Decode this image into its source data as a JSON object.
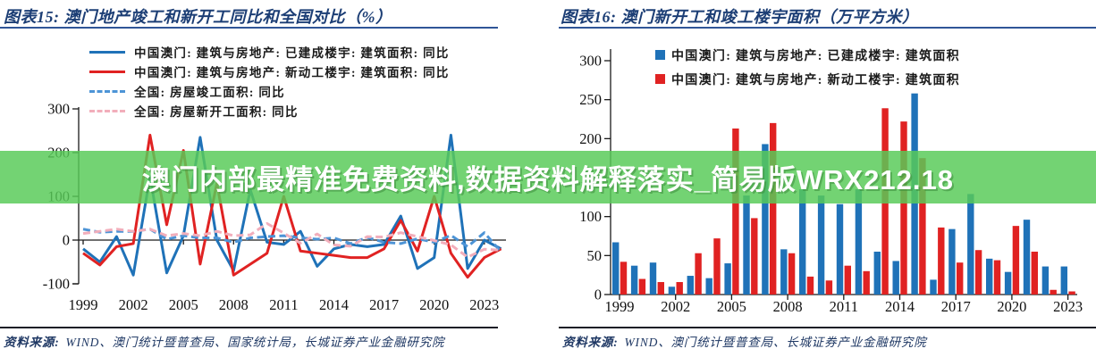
{
  "banner": {
    "text": "澳门内部最精准免费资料,数据资料解释落实_简易版WRX212.18",
    "bg_color": "#58CB58",
    "text_color": "#FFFFFF"
  },
  "left_panel": {
    "source_label": "资料来源:",
    "source": "WIND、澳门统计暨普查局、国家统计局，长城证券产业金融研究院"
  },
  "right_panel": {
    "source_label": "资料来源:",
    "source": "WIND、澳门统计暨普查局、长城证券产业金融研究院"
  },
  "chart_data": [
    {
      "type": "line",
      "title": "图表15:  澳门地产竣工和新开工同比和全国对比（%）",
      "xlabel": "",
      "ylabel": "",
      "ylim": [
        -100,
        300
      ],
      "yticks": [
        -100,
        0,
        100,
        200,
        300
      ],
      "xticks": [
        1999,
        2002,
        2005,
        2008,
        2011,
        2014,
        2017,
        2020,
        2023
      ],
      "grid": false,
      "legend_position": "top-left",
      "x": [
        1999,
        2000,
        2001,
        2002,
        2003,
        2004,
        2005,
        2006,
        2007,
        2008,
        2009,
        2010,
        2011,
        2012,
        2013,
        2014,
        2015,
        2016,
        2017,
        2018,
        2019,
        2020,
        2021,
        2022,
        2023,
        2024
      ],
      "series": [
        {
          "name": "中国澳门: 建筑与房地产: 已建成楼宇: 建筑面积: 同比",
          "color": "#1F72B8",
          "style": "solid",
          "values": [
            -20,
            -50,
            8,
            -80,
            145,
            -75,
            10,
            235,
            0,
            -70,
            115,
            -5,
            -10,
            20,
            -60,
            -20,
            -10,
            -15,
            -10,
            55,
            -65,
            -40,
            240,
            -65,
            0,
            -20
          ]
        },
        {
          "name": "中国澳门: 建筑与房地产: 新动工楼宇: 建筑面积: 同比",
          "color": "#E02222",
          "style": "solid",
          "values": [
            -30,
            -57,
            -15,
            -8,
            240,
            35,
            205,
            -55,
            130,
            -80,
            -55,
            -30,
            100,
            -25,
            -30,
            -35,
            -40,
            -40,
            -20,
            45,
            -25,
            100,
            -30,
            -85,
            -40,
            -20
          ]
        },
        {
          "name": "全国: 房屋竣工面积: 同比",
          "color": "#4D94D6",
          "style": "dashed",
          "values": [
            25,
            18,
            20,
            20,
            25,
            2,
            10,
            5,
            5,
            -5,
            5,
            8,
            10,
            5,
            2,
            5,
            -8,
            6,
            -5,
            -8,
            3,
            -5,
            11,
            -15,
            17,
            -27
          ]
        },
        {
          "name": "全国: 房屋新开工面积: 同比",
          "color": "#F2AEBB",
          "style": "dashed",
          "values": [
            15,
            20,
            25,
            20,
            25,
            10,
            15,
            10,
            20,
            10,
            12,
            38,
            16,
            -7,
            14,
            -11,
            -14,
            8,
            7,
            17,
            8,
            -1,
            -11,
            -39,
            -21,
            -23
          ]
        }
      ]
    },
    {
      "type": "bar",
      "title": "图表16:  澳门新开工和竣工楼宇面积（万平方米）",
      "xlabel": "",
      "ylabel": "",
      "ylim": [
        0,
        300
      ],
      "yticks": [
        0,
        50,
        100,
        150,
        200,
        250,
        300
      ],
      "xticks": [
        1999,
        2002,
        2005,
        2008,
        2011,
        2014,
        2017,
        2020,
        2023
      ],
      "grid": false,
      "legend_position": "top",
      "categories": [
        1999,
        2000,
        2001,
        2002,
        2003,
        2004,
        2005,
        2006,
        2007,
        2008,
        2009,
        2010,
        2011,
        2012,
        2013,
        2014,
        2015,
        2016,
        2017,
        2018,
        2019,
        2020,
        2021,
        2022,
        2023
      ],
      "series": [
        {
          "name": "中国澳门: 建筑与房地产: 已建成楼宇: 建筑面积",
          "color": "#1F72B8",
          "values": [
            67,
            37,
            41,
            10,
            24,
            21,
            40,
            127,
            193,
            58,
            135,
            127,
            116,
            135,
            55,
            43,
            258,
            19,
            84,
            129,
            46,
            29,
            96,
            36,
            36
          ]
        },
        {
          "name": "中国澳门: 建筑与房地产: 新动工楼宇: 建筑面积",
          "color": "#E02222",
          "values": [
            42,
            20,
            16,
            16,
            53,
            72,
            213,
            98,
            220,
            53,
            23,
            18,
            37,
            30,
            239,
            222,
            175,
            86,
            41,
            57,
            44,
            88,
            55,
            6,
            4
          ]
        }
      ]
    }
  ]
}
